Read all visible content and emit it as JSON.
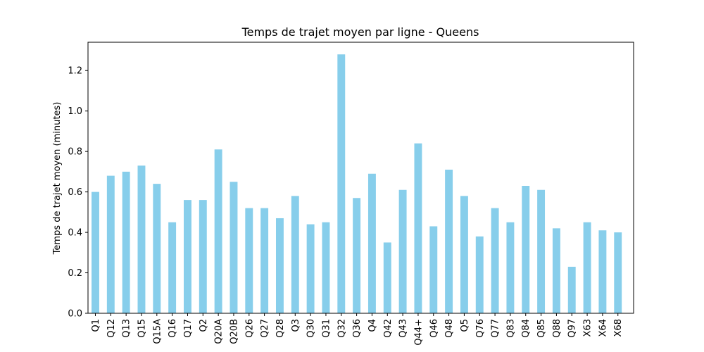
{
  "chart_data": {
    "type": "bar",
    "title": "Temps de trajet moyen par ligne - Queens",
    "xlabel": "",
    "ylabel": "Temps de trajet moyen (minutes)",
    "ylim": [
      0,
      1.34
    ],
    "yticks": [
      "0.0",
      "0.2",
      "0.4",
      "0.6",
      "0.8",
      "1.0",
      "1.2"
    ],
    "bar_color": "#87ceeb",
    "grid": false,
    "categories": [
      "Q1",
      "Q12",
      "Q13",
      "Q15",
      "Q15A",
      "Q16",
      "Q17",
      "Q2",
      "Q20A",
      "Q20B",
      "Q26",
      "Q27",
      "Q28",
      "Q3",
      "Q30",
      "Q31",
      "Q32",
      "Q36",
      "Q4",
      "Q42",
      "Q43",
      "Q44+",
      "Q46",
      "Q48",
      "Q5",
      "Q76",
      "Q77",
      "Q83",
      "Q84",
      "Q85",
      "Q88",
      "Q97",
      "X63",
      "X64",
      "X68"
    ],
    "values": [
      0.6,
      0.68,
      0.7,
      0.73,
      0.64,
      0.45,
      0.56,
      0.56,
      0.81,
      0.65,
      0.52,
      0.52,
      0.47,
      0.58,
      0.44,
      0.45,
      1.28,
      0.57,
      0.69,
      0.35,
      0.61,
      0.84,
      0.43,
      0.71,
      0.58,
      0.38,
      0.52,
      0.45,
      0.63,
      0.61,
      0.42,
      0.23,
      0.45,
      0.41,
      0.4
    ]
  }
}
